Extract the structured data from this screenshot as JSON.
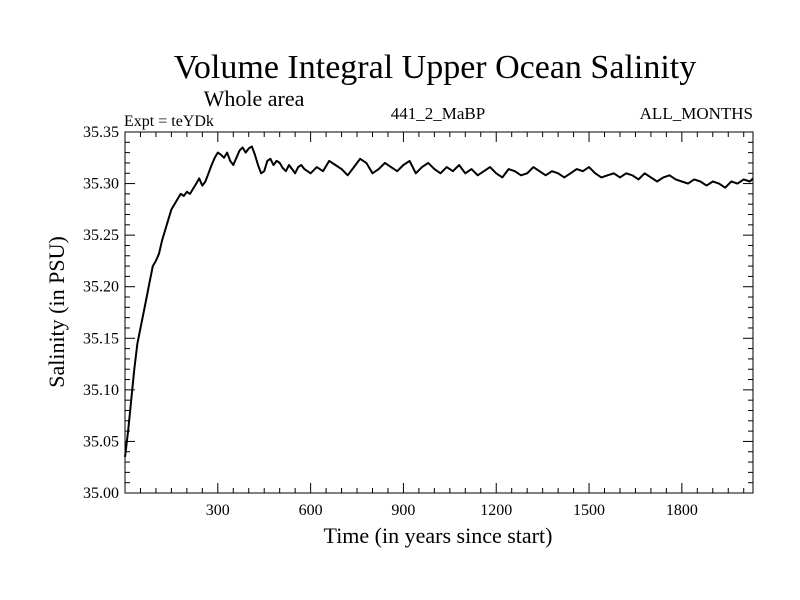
{
  "chart_data": {
    "type": "line",
    "title": "Volume Integral Upper Ocean Salinity",
    "subtitle": "Whole area",
    "experiment_label": "Expt = teYDk",
    "center_label": "441_2_MaBP",
    "right_label": "ALL_MONTHS",
    "xlabel": "Time (in years since start)",
    "ylabel": "Salinity (in PSU)",
    "xlim": [
      0,
      2030
    ],
    "ylim": [
      35.0,
      35.35
    ],
    "x_ticks": [
      300,
      600,
      900,
      1200,
      1500,
      1800
    ],
    "x_tick_labels": [
      "300",
      "600",
      "900",
      "1200",
      "1500",
      "1800"
    ],
    "y_ticks": [
      35.0,
      35.05,
      35.1,
      35.15,
      35.2,
      35.25,
      35.3,
      35.35
    ],
    "y_tick_labels": [
      "35.00",
      "35.05",
      "35.10",
      "35.15",
      "35.20",
      "35.25",
      "35.30",
      "35.35"
    ],
    "grid": false,
    "series": [
      {
        "name": "salinity",
        "x": [
          0,
          10,
          20,
          30,
          40,
          50,
          60,
          70,
          80,
          90,
          100,
          110,
          120,
          130,
          140,
          150,
          160,
          170,
          180,
          190,
          200,
          210,
          220,
          230,
          240,
          250,
          260,
          270,
          280,
          290,
          300,
          310,
          320,
          330,
          340,
          350,
          360,
          370,
          380,
          390,
          400,
          410,
          420,
          430,
          440,
          450,
          460,
          470,
          480,
          490,
          500,
          510,
          520,
          530,
          540,
          550,
          560,
          570,
          580,
          590,
          600,
          620,
          640,
          660,
          680,
          700,
          720,
          740,
          760,
          780,
          800,
          820,
          840,
          860,
          880,
          900,
          920,
          940,
          960,
          980,
          1000,
          1020,
          1040,
          1060,
          1080,
          1100,
          1120,
          1140,
          1160,
          1180,
          1200,
          1220,
          1240,
          1260,
          1280,
          1300,
          1320,
          1340,
          1360,
          1380,
          1400,
          1420,
          1440,
          1460,
          1480,
          1500,
          1520,
          1540,
          1560,
          1580,
          1600,
          1620,
          1640,
          1660,
          1680,
          1700,
          1720,
          1740,
          1760,
          1780,
          1800,
          1820,
          1840,
          1860,
          1880,
          1900,
          1920,
          1940,
          1960,
          1980,
          2000,
          2020,
          2030
        ],
        "values": [
          35.035,
          35.06,
          35.09,
          35.12,
          35.145,
          35.16,
          35.175,
          35.19,
          35.205,
          35.22,
          35.225,
          35.232,
          35.245,
          35.255,
          35.265,
          35.275,
          35.28,
          35.285,
          35.29,
          35.288,
          35.292,
          35.29,
          35.295,
          35.3,
          35.305,
          35.298,
          35.302,
          35.31,
          35.318,
          35.325,
          35.33,
          35.328,
          35.325,
          35.33,
          35.322,
          35.318,
          35.325,
          35.332,
          35.335,
          35.33,
          35.334,
          35.336,
          35.328,
          35.318,
          35.31,
          35.312,
          35.322,
          35.324,
          35.318,
          35.322,
          35.32,
          35.315,
          35.312,
          35.318,
          35.314,
          35.31,
          35.316,
          35.318,
          35.314,
          35.312,
          35.31,
          35.316,
          35.312,
          35.322,
          35.318,
          35.314,
          35.308,
          35.316,
          35.324,
          35.32,
          35.31,
          35.314,
          35.32,
          35.316,
          35.312,
          35.318,
          35.322,
          35.31,
          35.316,
          35.32,
          35.314,
          35.31,
          35.316,
          35.312,
          35.318,
          35.31,
          35.314,
          35.308,
          35.312,
          35.316,
          35.31,
          35.306,
          35.314,
          35.312,
          35.308,
          35.31,
          35.316,
          35.312,
          35.308,
          35.312,
          35.31,
          35.306,
          35.31,
          35.314,
          35.312,
          35.316,
          35.31,
          35.306,
          35.308,
          35.31,
          35.306,
          35.31,
          35.308,
          35.304,
          35.31,
          35.306,
          35.302,
          35.306,
          35.308,
          35.304,
          35.302,
          35.3,
          35.304,
          35.302,
          35.298,
          35.302,
          35.3,
          35.296,
          35.302,
          35.3,
          35.304,
          35.302,
          35.305
        ]
      }
    ]
  }
}
